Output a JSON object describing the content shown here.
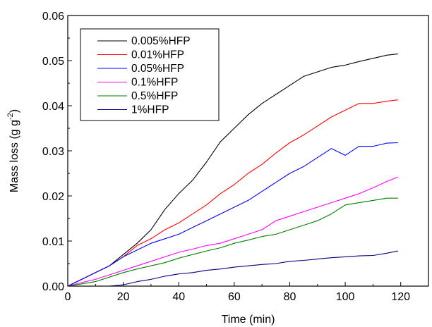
{
  "chart_data": {
    "type": "line",
    "xlabel": "Time (min)",
    "ylabel_main": "Mass loss (g g",
    "ylabel_sup": "-2",
    "ylabel_tail": ")",
    "xlim": [
      0,
      130
    ],
    "ylim": [
      0,
      0.06
    ],
    "x_ticks": [
      0,
      20,
      40,
      60,
      80,
      100,
      120
    ],
    "x_tick_labels": [
      "0",
      "20",
      "40",
      "60",
      "80",
      "100",
      "120"
    ],
    "y_ticks": [
      0,
      0.01,
      0.02,
      0.03,
      0.04,
      0.05,
      0.06
    ],
    "y_tick_labels": [
      "0.00",
      "0.01",
      "0.02",
      "0.03",
      "0.04",
      "0.05",
      "0.06"
    ],
    "grid": false,
    "legend_position": "top-left",
    "series": [
      {
        "name": "0.005%HFP",
        "color": "#000000",
        "x": [
          0,
          5,
          10,
          15,
          20,
          25,
          30,
          35,
          40,
          45,
          50,
          55,
          60,
          65,
          70,
          75,
          80,
          85,
          90,
          95,
          100,
          105,
          110,
          115,
          119
        ],
        "y": [
          0,
          0.0015,
          0.003,
          0.0045,
          0.007,
          0.0095,
          0.0125,
          0.017,
          0.0205,
          0.0235,
          0.0275,
          0.032,
          0.035,
          0.038,
          0.0405,
          0.0425,
          0.0445,
          0.0465,
          0.0475,
          0.0485,
          0.049,
          0.0498,
          0.0505,
          0.0512,
          0.0515
        ]
      },
      {
        "name": "0.01%HFP",
        "color": "#ff0000",
        "x": [
          0,
          5,
          10,
          15,
          20,
          25,
          30,
          35,
          40,
          45,
          50,
          55,
          60,
          65,
          70,
          75,
          80,
          85,
          90,
          95,
          100,
          105,
          110,
          115,
          119
        ],
        "y": [
          0,
          0.0015,
          0.003,
          0.0045,
          0.0065,
          0.009,
          0.0105,
          0.0125,
          0.014,
          0.016,
          0.018,
          0.0205,
          0.0225,
          0.025,
          0.027,
          0.0295,
          0.0318,
          0.0335,
          0.0355,
          0.0375,
          0.039,
          0.0405,
          0.0405,
          0.041,
          0.0413
        ]
      },
      {
        "name": "0.05%HFP",
        "color": "#0000ff",
        "x": [
          0,
          5,
          10,
          15,
          20,
          25,
          30,
          35,
          40,
          45,
          50,
          55,
          60,
          65,
          70,
          75,
          80,
          85,
          90,
          95,
          100,
          105,
          110,
          115,
          119
        ],
        "y": [
          0,
          0.0015,
          0.003,
          0.0045,
          0.0065,
          0.008,
          0.0095,
          0.0105,
          0.0115,
          0.013,
          0.0145,
          0.016,
          0.0175,
          0.019,
          0.021,
          0.023,
          0.025,
          0.0265,
          0.0285,
          0.0305,
          0.029,
          0.031,
          0.031,
          0.0317,
          0.0318
        ]
      },
      {
        "name": "0.1%HFP",
        "color": "#ff00ff",
        "x": [
          0,
          5,
          10,
          15,
          20,
          25,
          30,
          35,
          40,
          45,
          50,
          55,
          60,
          65,
          70,
          75,
          80,
          85,
          90,
          95,
          100,
          105,
          110,
          115,
          119
        ],
        "y": [
          0,
          0.0008,
          0.0015,
          0.0025,
          0.0035,
          0.0045,
          0.0055,
          0.0065,
          0.0075,
          0.0082,
          0.009,
          0.0095,
          0.0105,
          0.0115,
          0.0125,
          0.0145,
          0.0155,
          0.0165,
          0.0175,
          0.0185,
          0.0195,
          0.0205,
          0.0218,
          0.0232,
          0.0242
        ]
      },
      {
        "name": "0.5%HFP",
        "color": "#008000",
        "x": [
          0,
          5,
          10,
          15,
          20,
          25,
          30,
          35,
          40,
          45,
          50,
          55,
          60,
          65,
          70,
          75,
          80,
          85,
          90,
          95,
          100,
          105,
          110,
          115,
          119
        ],
        "y": [
          0,
          0.0005,
          0.001,
          0.002,
          0.003,
          0.0038,
          0.0045,
          0.0052,
          0.0062,
          0.007,
          0.0078,
          0.0085,
          0.0095,
          0.0102,
          0.011,
          0.0115,
          0.0125,
          0.0135,
          0.0145,
          0.016,
          0.018,
          0.0185,
          0.019,
          0.0195,
          0.0195
        ]
      },
      {
        "name": "1%HFP",
        "color": "#000080",
        "x": [
          0,
          5,
          10,
          15,
          20,
          25,
          30,
          35,
          40,
          45,
          50,
          55,
          60,
          65,
          70,
          75,
          80,
          85,
          90,
          95,
          100,
          105,
          110,
          115,
          119
        ],
        "y": [
          0,
          0,
          0,
          0,
          0.0003,
          0.001,
          0.0015,
          0.0022,
          0.0027,
          0.003,
          0.0035,
          0.0038,
          0.0042,
          0.0045,
          0.0048,
          0.005,
          0.0055,
          0.0057,
          0.006,
          0.0063,
          0.0065,
          0.0067,
          0.0068,
          0.0073,
          0.0078
        ]
      }
    ]
  }
}
